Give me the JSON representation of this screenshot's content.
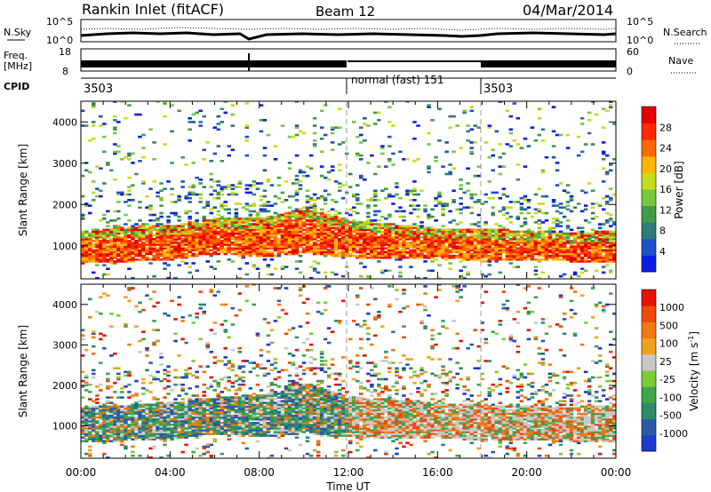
{
  "header": {
    "station": "Rankin Inlet (fitACF)",
    "beam": "Beam 12",
    "date": "04/Mar/2014"
  },
  "strip_panels": {
    "nsky": {
      "label": "N.Sky",
      "tick_top": "10^5",
      "tick_bottom": "10^0",
      "right_tick_top": "10^5",
      "right_tick_bottom": "10^0",
      "right_label": "N.Search"
    },
    "freq": {
      "label_line1": "Freq.",
      "label_line2": "[MHz]",
      "tick_top": "18",
      "tick_bottom": "8",
      "right_tick_top": "60",
      "right_tick_bottom": "0",
      "right_label": "Nave"
    },
    "cpid": {
      "label": "CPID",
      "segments": [
        {
          "start": 0,
          "end": 12,
          "text": "3503"
        },
        {
          "start": 12,
          "end": 18,
          "text": "normal (fast) 151"
        },
        {
          "start": 18,
          "end": 24,
          "text": "3503"
        }
      ]
    }
  },
  "chart_data": [
    {
      "type": "heatmap",
      "name": "power-panel",
      "xlabel": "",
      "ylabel": "Slant Range [km]",
      "xlim": [
        0,
        24
      ],
      "ylim": [
        200,
        4500
      ],
      "yticks": [
        1000,
        2000,
        3000,
        4000
      ],
      "grid": false,
      "colorbar": {
        "label": "Power [dB]",
        "ticks": [
          "4",
          "8",
          "12",
          "16",
          "20",
          "24",
          "28"
        ],
        "colors": [
          "#0a1ee6",
          "#1f4fc8",
          "#2f7a7a",
          "#3f9a4a",
          "#78c83c",
          "#c8dc1e",
          "#ffb400",
          "#ff6a00",
          "#ff2a00",
          "#e60000"
        ]
      },
      "scatter_band": [
        {
          "x": 0,
          "low": 560,
          "high": 1350
        },
        {
          "x": 2,
          "low": 600,
          "high": 1450
        },
        {
          "x": 4,
          "low": 640,
          "high": 1500
        },
        {
          "x": 6,
          "low": 780,
          "high": 1650
        },
        {
          "x": 8,
          "low": 700,
          "high": 1650
        },
        {
          "x": 10,
          "low": 800,
          "high": 1900
        },
        {
          "x": 12,
          "low": 700,
          "high": 1600
        },
        {
          "x": 14,
          "low": 650,
          "high": 1500
        },
        {
          "x": 16,
          "low": 700,
          "high": 1400
        },
        {
          "x": 18,
          "low": 600,
          "high": 1400
        },
        {
          "x": 20,
          "low": 650,
          "high": 1350
        },
        {
          "x": 22,
          "low": 600,
          "high": 1300
        },
        {
          "x": 24,
          "low": 600,
          "high": 1350
        }
      ]
    },
    {
      "type": "heatmap",
      "name": "velocity-panel",
      "xlabel": "Time UT",
      "ylabel": "Slant Range [km]",
      "xlim": [
        0,
        24
      ],
      "ylim": [
        200,
        4500
      ],
      "yticks": [
        1000,
        2000,
        3000,
        4000
      ],
      "xticks": [
        "00:00",
        "04:00",
        "08:00",
        "12:00",
        "16:00",
        "20:00",
        "00:00"
      ],
      "grid": false,
      "colorbar": {
        "label": "Velocity [m s",
        "label_sup": "-1",
        "label_end": "]",
        "ticks": [
          "1000",
          "500",
          "100",
          "25",
          "-25",
          "-100",
          "-500",
          "-1000"
        ],
        "colors": [
          "#1e3cc8",
          "#2a5aa8",
          "#2e8a6a",
          "#3fa44a",
          "#7ccc3a",
          "#c8c8c8",
          "#f0a21e",
          "#f07a14",
          "#f04a0a",
          "#e61400"
        ]
      },
      "scatter_band": [
        {
          "x": 0,
          "low": 560,
          "high": 1450
        },
        {
          "x": 2,
          "low": 600,
          "high": 1500
        },
        {
          "x": 4,
          "low": 640,
          "high": 1550
        },
        {
          "x": 6,
          "low": 780,
          "high": 1700
        },
        {
          "x": 8,
          "low": 700,
          "high": 1750
        },
        {
          "x": 10,
          "low": 800,
          "high": 2050
        },
        {
          "x": 12,
          "low": 700,
          "high": 1700
        },
        {
          "x": 14,
          "low": 650,
          "high": 1650
        },
        {
          "x": 16,
          "low": 700,
          "high": 1550
        },
        {
          "x": 18,
          "low": 600,
          "high": 1500
        },
        {
          "x": 20,
          "low": 650,
          "high": 1500
        },
        {
          "x": 22,
          "low": 600,
          "high": 1450
        },
        {
          "x": 24,
          "low": 600,
          "high": 1500
        }
      ]
    }
  ]
}
